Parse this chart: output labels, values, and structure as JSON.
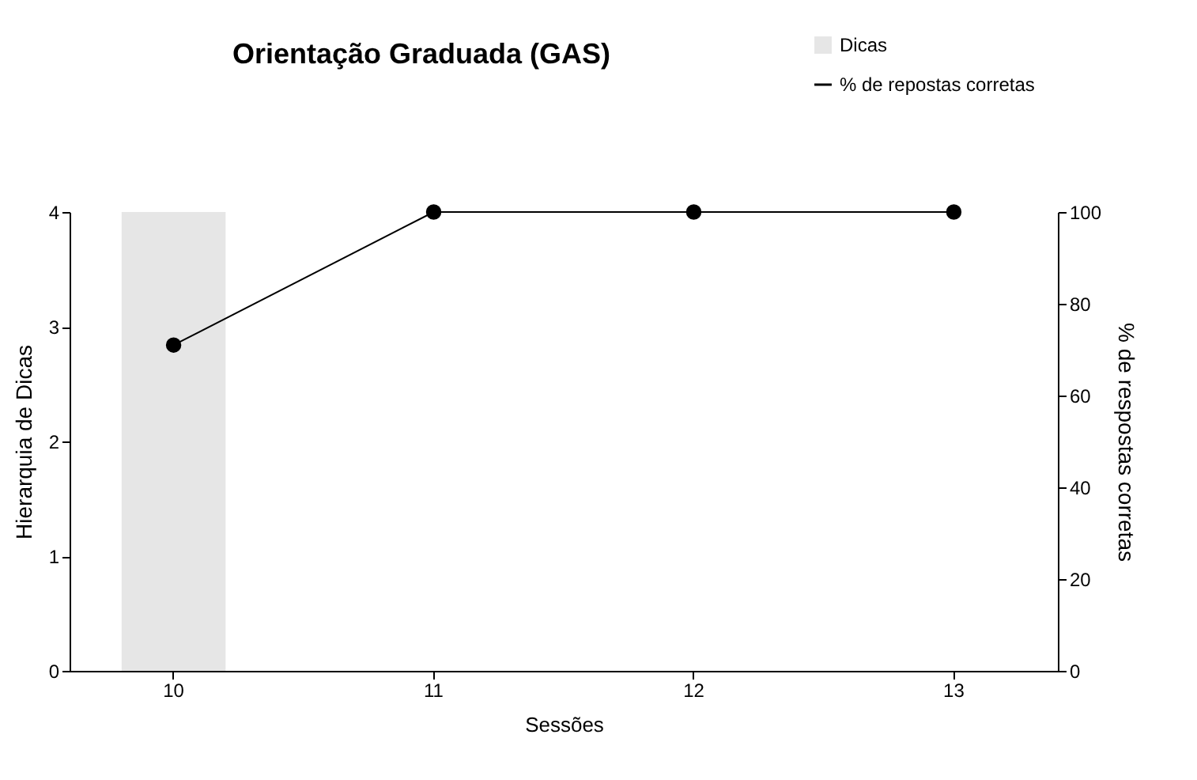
{
  "chart_data": {
    "type": "bar",
    "title": "Orientação Graduada (GAS)",
    "xlabel": "Sessões",
    "ylabel": "Hierarquia de Dicas",
    "y2label": "% de respostas corretas",
    "categories": [
      "10",
      "11",
      "12",
      "13"
    ],
    "series": [
      {
        "name": "Dicas",
        "color": "#e6e6e6",
        "values": [
          4,
          null,
          null,
          null
        ]
      },
      {
        "name": "% de repostas corretas",
        "type": "line",
        "axis": "y2",
        "color": "#000000",
        "marker": "circle",
        "values": [
          71,
          100,
          100,
          100
        ]
      }
    ],
    "ylim": [
      0,
      4
    ],
    "yticks": [
      0,
      1,
      2,
      3,
      4
    ],
    "y2lim": [
      0,
      100
    ],
    "y2ticks": [
      0,
      20,
      40,
      60,
      80,
      100
    ],
    "grid": false,
    "legend": "top right"
  }
}
